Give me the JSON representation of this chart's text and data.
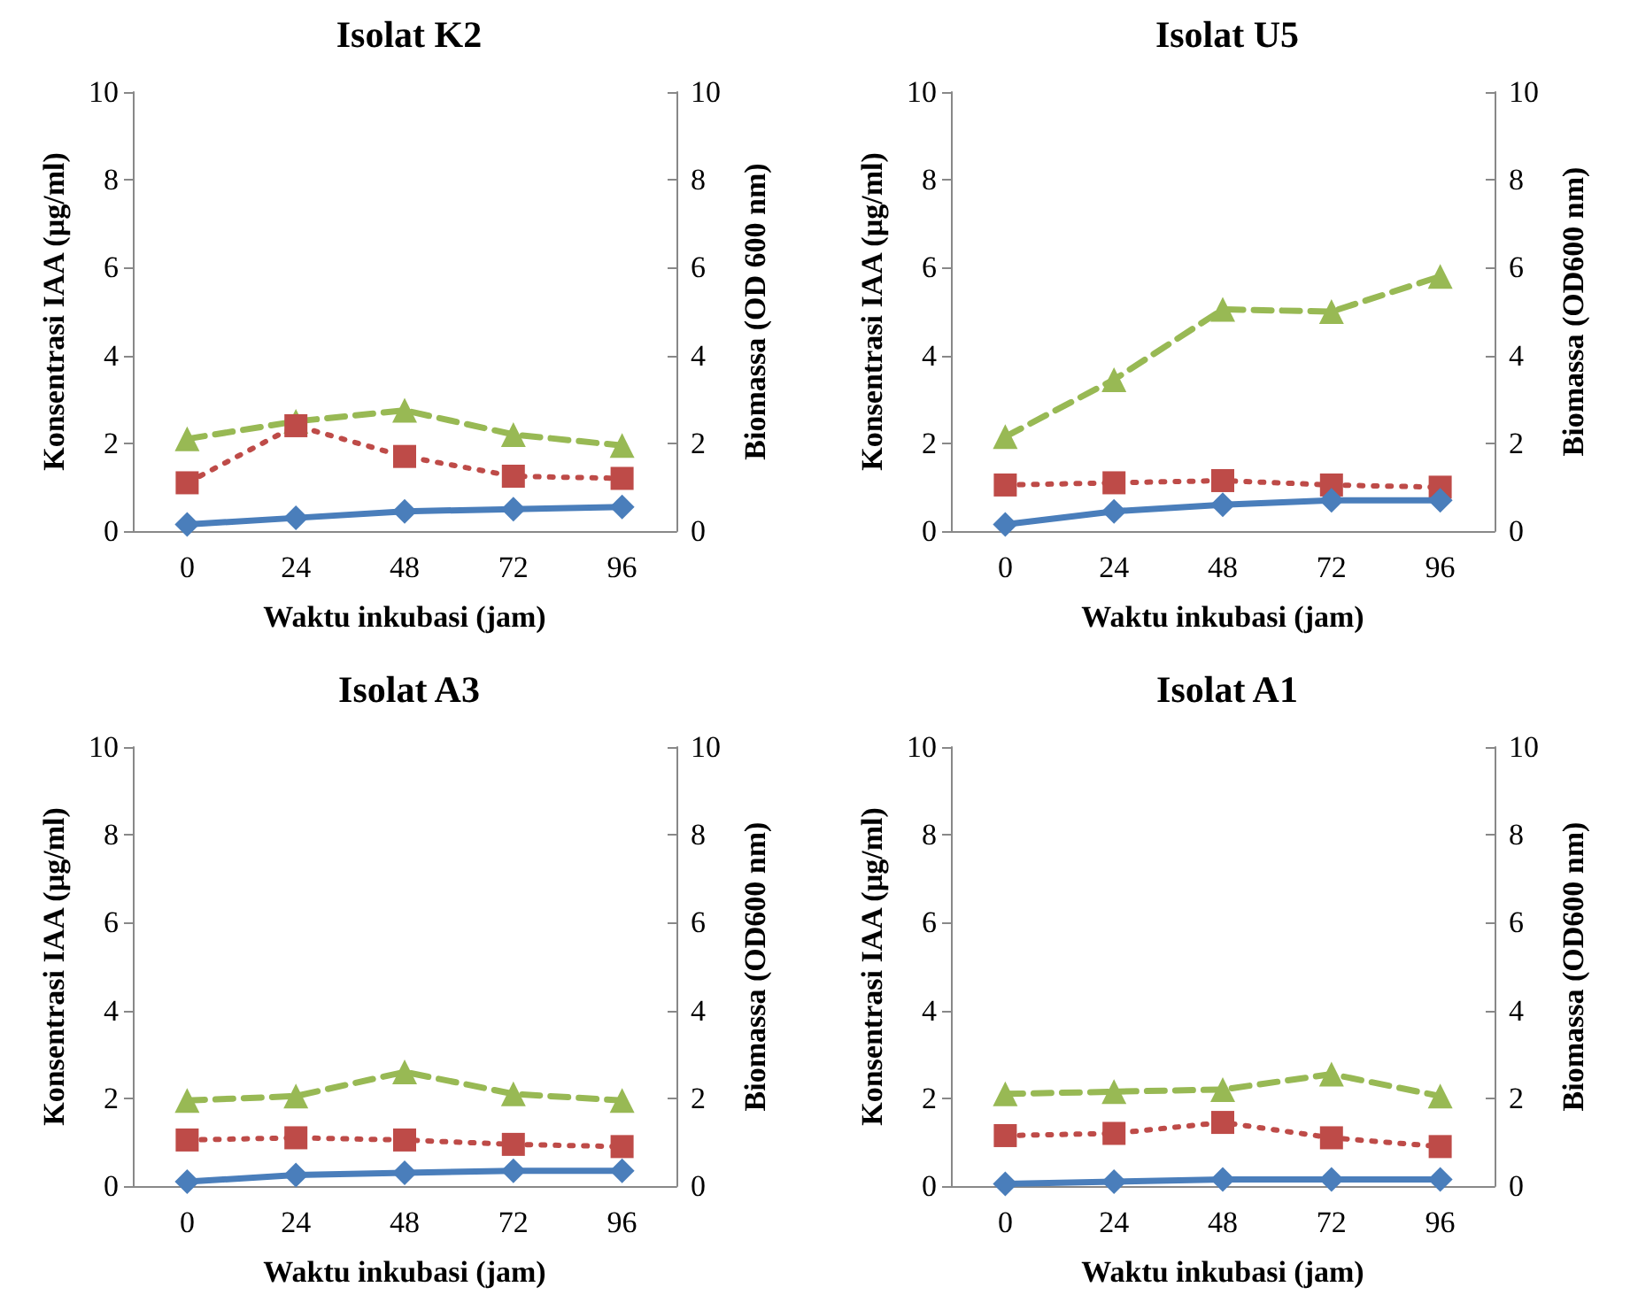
{
  "chart_data": [
    {
      "type": "line",
      "title": "Isolat K2",
      "xlabel": "Waktu inkubasi (jam)",
      "ylabel": "Konsentrasi IAA (µg/ml)",
      "y2label": "Biomassa (OD 600 nm)",
      "categories": [
        "0",
        "24",
        "48",
        "72",
        "96"
      ],
      "ylim": [
        0,
        10
      ],
      "yticks": [
        0,
        2,
        4,
        6,
        8,
        10
      ],
      "y2lim": [
        0,
        10
      ],
      "y2ticks": [
        0,
        2,
        4,
        6,
        8,
        10
      ],
      "grid": false,
      "series": [
        {
          "color": "#4a7ebb",
          "marker": "diamond",
          "line_style": "solid",
          "values": [
            0.15,
            0.3,
            0.45,
            0.5,
            0.55
          ]
        },
        {
          "color": "#be4b48",
          "marker": "square",
          "line_style": "dotted",
          "values": [
            1.1,
            2.4,
            1.7,
            1.25,
            1.2
          ]
        },
        {
          "color": "#98b954",
          "marker": "triangle",
          "line_style": "dashed",
          "values": [
            2.1,
            2.5,
            2.75,
            2.2,
            1.95
          ]
        }
      ]
    },
    {
      "type": "line",
      "title": "Isolat U5",
      "xlabel": "Waktu inkubasi (jam)",
      "ylabel": "Konsentrasi IAA (µg/ml)",
      "y2label": "Biomassa (OD600 nm)",
      "categories": [
        "0",
        "24",
        "48",
        "72",
        "96"
      ],
      "ylim": [
        0,
        10
      ],
      "yticks": [
        0,
        2,
        4,
        6,
        8,
        10
      ],
      "y2lim": [
        0,
        10
      ],
      "y2ticks": [
        0,
        2,
        4,
        6,
        8,
        10
      ],
      "grid": false,
      "series": [
        {
          "color": "#4a7ebb",
          "marker": "diamond",
          "line_style": "solid",
          "values": [
            0.15,
            0.45,
            0.6,
            0.7,
            0.7
          ]
        },
        {
          "color": "#be4b48",
          "marker": "square",
          "line_style": "dotted",
          "values": [
            1.05,
            1.1,
            1.15,
            1.05,
            1.0
          ]
        },
        {
          "color": "#98b954",
          "marker": "triangle",
          "line_style": "dashed",
          "values": [
            2.15,
            3.45,
            5.05,
            5.0,
            5.8
          ]
        }
      ]
    },
    {
      "type": "line",
      "title": "Isolat A3",
      "xlabel": "Waktu inkubasi (jam)",
      "ylabel": "Konsentrasi IAA (µg/ml)",
      "y2label": "Biomassa (OD600 nm)",
      "categories": [
        "0",
        "24",
        "48",
        "72",
        "96"
      ],
      "ylim": [
        0,
        10
      ],
      "yticks": [
        0,
        2,
        4,
        6,
        8,
        10
      ],
      "y2lim": [
        0,
        10
      ],
      "y2ticks": [
        0,
        2,
        4,
        6,
        8,
        10
      ],
      "grid": false,
      "series": [
        {
          "color": "#4a7ebb",
          "marker": "diamond",
          "line_style": "solid",
          "values": [
            0.1,
            0.25,
            0.3,
            0.35,
            0.35
          ]
        },
        {
          "color": "#be4b48",
          "marker": "square",
          "line_style": "dotted",
          "values": [
            1.05,
            1.1,
            1.05,
            0.95,
            0.9
          ]
        },
        {
          "color": "#98b954",
          "marker": "triangle",
          "line_style": "dashed",
          "values": [
            1.95,
            2.05,
            2.6,
            2.1,
            1.95
          ]
        }
      ]
    },
    {
      "type": "line",
      "title": "Isolat A1",
      "xlabel": "Waktu inkubasi (jam)",
      "ylabel": "Konsentrasi IAA (µg/ml)",
      "y2label": "Biomassa (OD600 nm)",
      "categories": [
        "0",
        "24",
        "48",
        "72",
        "96"
      ],
      "ylim": [
        0,
        10
      ],
      "yticks": [
        0,
        2,
        4,
        6,
        8,
        10
      ],
      "y2lim": [
        0,
        10
      ],
      "y2ticks": [
        0,
        2,
        4,
        6,
        8,
        10
      ],
      "grid": false,
      "series": [
        {
          "color": "#4a7ebb",
          "marker": "diamond",
          "line_style": "solid",
          "values": [
            0.05,
            0.1,
            0.15,
            0.15,
            0.15
          ]
        },
        {
          "color": "#be4b48",
          "marker": "square",
          "line_style": "dotted",
          "values": [
            1.15,
            1.2,
            1.45,
            1.1,
            0.9
          ]
        },
        {
          "color": "#98b954",
          "marker": "triangle",
          "line_style": "dashed",
          "values": [
            2.1,
            2.15,
            2.2,
            2.55,
            2.05
          ]
        }
      ]
    }
  ]
}
